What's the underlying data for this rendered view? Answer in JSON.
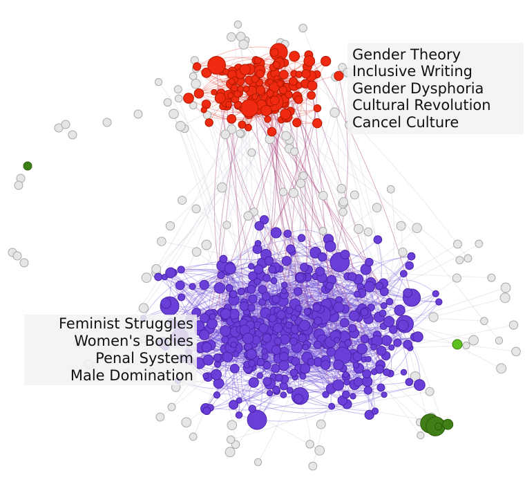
{
  "labels": [
    {
      "lines": [
        "Gender Theory",
        "Inclusive Writing",
        "Gender Dysphoria",
        "Cultural Revolution",
        "Cancel Culture"
      ]
    },
    {
      "lines": [
        "Feminist Struggles",
        "Women's Bodies",
        "Penal System",
        "Male Domination"
      ]
    }
  ]
}
